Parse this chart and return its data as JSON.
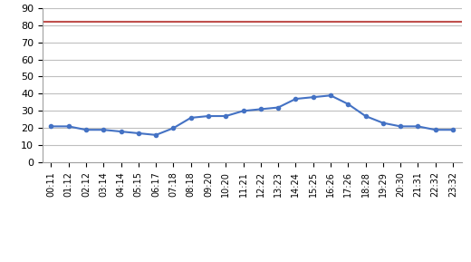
{
  "x_labels": [
    "00:11",
    "01:12",
    "02:12",
    "03:14",
    "04:14",
    "05:15",
    "06:17",
    "07:18",
    "08:18",
    "09:20",
    "10:20",
    "11:21",
    "12:22",
    "13:23",
    "14:24",
    "15:25",
    "16:26",
    "17:26",
    "18:28",
    "19:29",
    "20:30",
    "21:31",
    "22:32",
    "23:32"
  ],
  "temperature": [
    21,
    21,
    19,
    19,
    18,
    17,
    16,
    20,
    26,
    27,
    27,
    30,
    31,
    32,
    37,
    38,
    39,
    34,
    27,
    23,
    21,
    21,
    19,
    19
  ],
  "overload_threshold": 82,
  "temp_color": "#4472C4",
  "threshold_color": "#C0504D",
  "ylim": [
    0,
    90
  ],
  "yticks": [
    0,
    10,
    20,
    30,
    40,
    50,
    60,
    70,
    80,
    90
  ],
  "background_color": "#ffffff",
  "plot_area_color": "#ffffff",
  "grid_color": "#bfbfbf"
}
